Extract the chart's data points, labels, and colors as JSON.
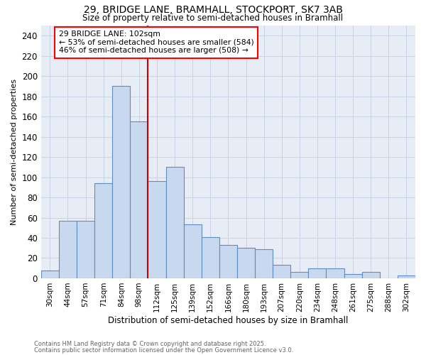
{
  "title1": "29, BRIDGE LANE, BRAMHALL, STOCKPORT, SK7 3AB",
  "title2": "Size of property relative to semi-detached houses in Bramhall",
  "xlabel": "Distribution of semi-detached houses by size in Bramhall",
  "ylabel": "Number of semi-detached properties",
  "footnote1": "Contains HM Land Registry data © Crown copyright and database right 2025.",
  "footnote2": "Contains public sector information licensed under the Open Government Licence v3.0.",
  "annotation_line1": "29 BRIDGE LANE: 102sqm",
  "annotation_line2": "← 53% of semi-detached houses are smaller (584)",
  "annotation_line3": "46% of semi-detached houses are larger (508) →",
  "bar_color": "#c8d8ee",
  "bar_edge_color": "#5b8ec6",
  "vline_color": "#cc0000",
  "grid_color": "#c8d4e8",
  "bg_color": "#e8edf5",
  "categories": [
    "30sqm",
    "44sqm",
    "57sqm",
    "71sqm",
    "84sqm",
    "98sqm",
    "112sqm",
    "125sqm",
    "139sqm",
    "152sqm",
    "166sqm",
    "180sqm",
    "193sqm",
    "207sqm",
    "220sqm",
    "234sqm",
    "248sqm",
    "261sqm",
    "275sqm",
    "288sqm",
    "302sqm"
  ],
  "values": [
    8,
    57,
    57,
    94,
    190,
    155,
    96,
    110,
    53,
    41,
    33,
    30,
    29,
    13,
    6,
    10,
    10,
    4,
    6,
    0,
    3
  ],
  "ylim": [
    0,
    250
  ],
  "yticks": [
    0,
    20,
    40,
    60,
    80,
    100,
    120,
    140,
    160,
    180,
    200,
    220,
    240
  ],
  "vline_x_index": 5.5,
  "figsize": [
    6.0,
    5.0
  ],
  "dpi": 100
}
